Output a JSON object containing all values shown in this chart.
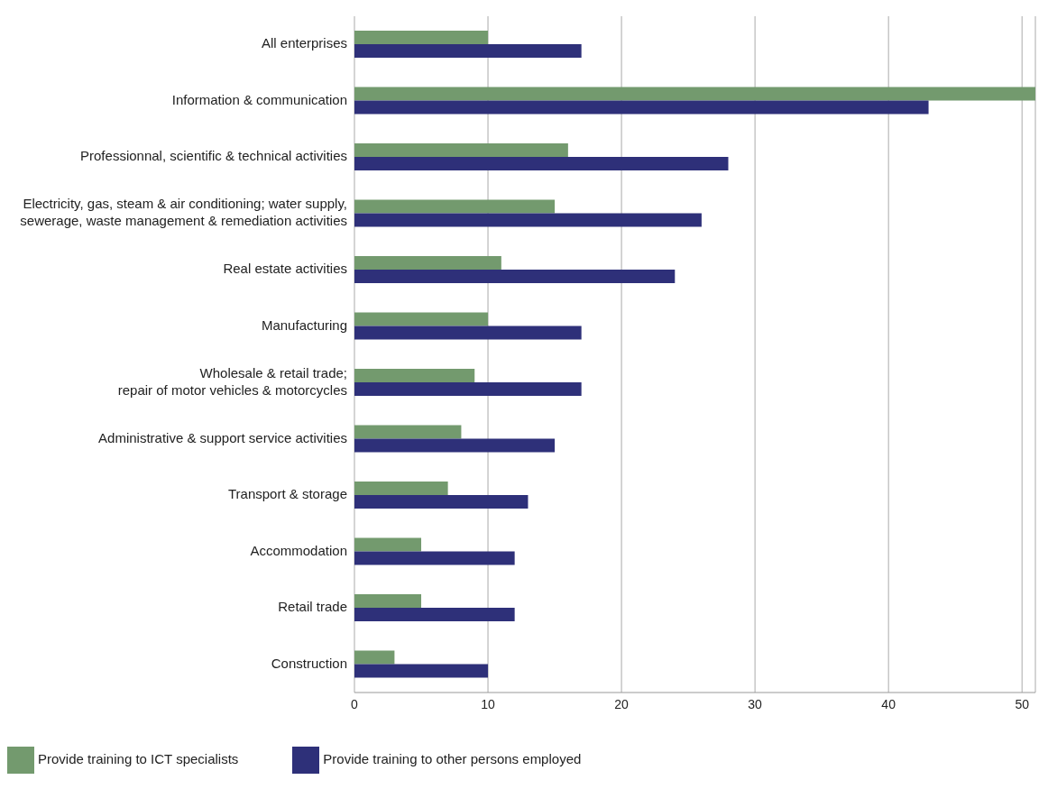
{
  "chart_data": {
    "type": "bar",
    "orientation": "horizontal",
    "categories": [
      "All enterprises",
      "Information & communication",
      "Professionnal, scientific & technical activities",
      "Electricity, gas, steam & air conditioning; water supply,\nsewerage, waste management & remediation activities",
      "Real estate activities",
      "Manufacturing",
      "Wholesale & retail trade;\nrepair of motor vehicles & motorcycles",
      "Administrative & support service activities",
      "Transport & storage",
      "Accommodation",
      "Retail trade",
      "Construction"
    ],
    "series": [
      {
        "name": "Provide training to ICT specialists",
        "color": "#739a6e",
        "values": [
          10,
          51,
          16,
          15,
          11,
          10,
          9,
          8,
          7,
          5,
          5,
          3
        ]
      },
      {
        "name": "Provide training to other persons employed",
        "color": "#2e3079",
        "values": [
          17,
          43,
          28,
          26,
          24,
          17,
          17,
          15,
          13,
          12,
          12,
          10
        ]
      }
    ],
    "xlim": [
      0,
      51
    ],
    "xticks": [
      0,
      10,
      20,
      30,
      40,
      50
    ],
    "grid": "x",
    "legend": "bottom left"
  }
}
